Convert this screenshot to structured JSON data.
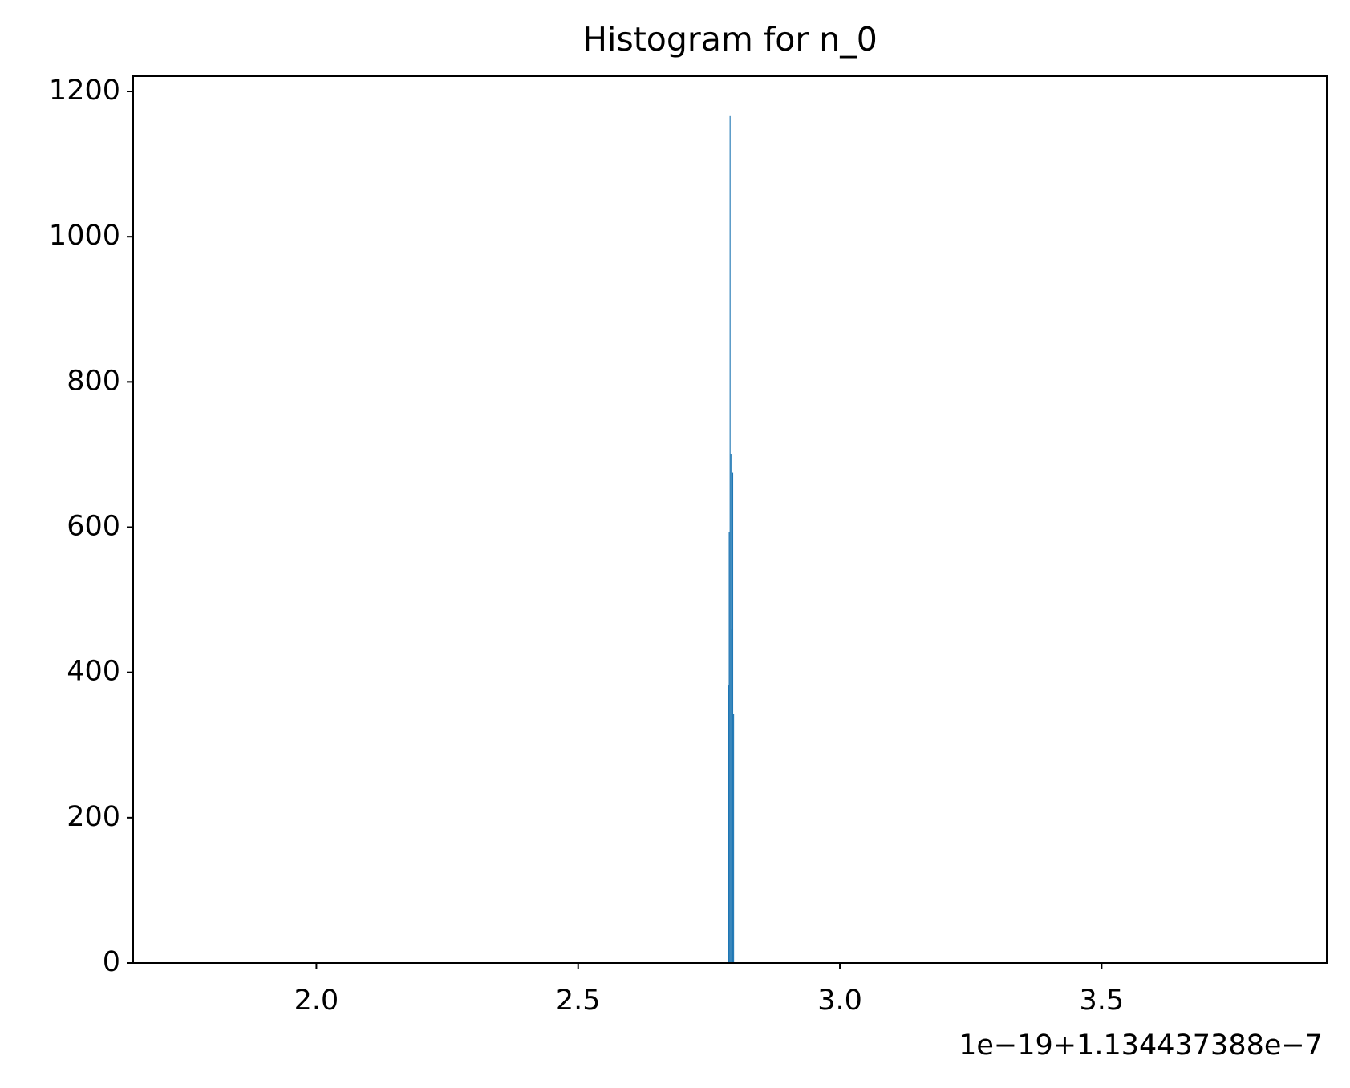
{
  "chart_data": {
    "type": "histogram",
    "title": "Histogram for n_0",
    "bins": [
      2.786,
      2.7877,
      2.7894,
      2.7911,
      2.7928,
      2.7945,
      2.7962,
      2.7979
    ],
    "values": [
      383,
      593,
      1166,
      701,
      459,
      675,
      343
    ],
    "color": "#1f77b4",
    "xlim": [
      1.65,
      3.93
    ],
    "xticks": [
      {
        "value": 2,
        "label": "2.0"
      },
      {
        "value": 2.5,
        "label": "2.5"
      },
      {
        "value": 3,
        "label": "3.0"
      },
      {
        "value": 3.5,
        "label": "3.5"
      }
    ],
    "x_offset_label": "1e−19+1.134437388e−7",
    "ylim": [
      0,
      1221
    ],
    "yticks": [
      0,
      200,
      400,
      600,
      800,
      1000,
      1200
    ],
    "grid": false
  }
}
